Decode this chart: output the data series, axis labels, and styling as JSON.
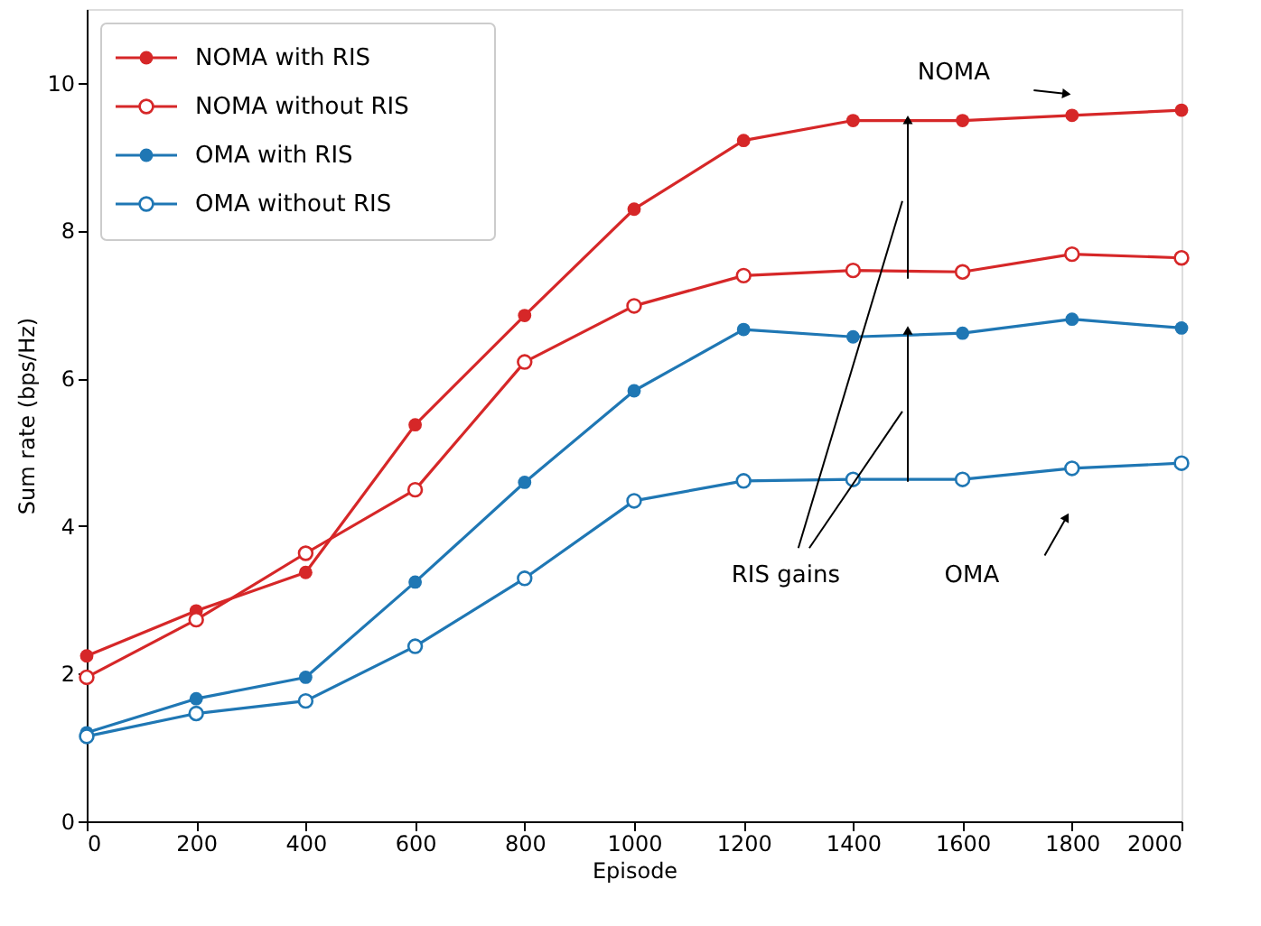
{
  "chart_data": {
    "type": "line",
    "xlabel": "Episode",
    "ylabel": "Sum rate (bps/Hz)",
    "x": [
      0,
      200,
      400,
      600,
      800,
      1000,
      1200,
      1400,
      1600,
      1800,
      2000
    ],
    "series": [
      {
        "name": "NOMA with RIS",
        "color": "#d62728",
        "values": [
          2.24,
          2.85,
          3.37,
          5.37,
          6.85,
          8.29,
          9.22,
          9.49,
          9.49,
          9.56,
          9.63
        ]
      },
      {
        "name": "NOMA without RIS",
        "color": "#d62728",
        "values": [
          1.95,
          2.73,
          3.63,
          4.49,
          6.22,
          6.98,
          7.39,
          7.46,
          7.44,
          7.68,
          7.63
        ]
      },
      {
        "name": "OMA with RIS",
        "color": "#1f77b4",
        "values": [
          1.2,
          1.66,
          1.95,
          3.24,
          4.59,
          5.83,
          6.66,
          6.56,
          6.61,
          6.8,
          6.68
        ]
      },
      {
        "name": "OMA without RIS",
        "color": "#1f77b4",
        "values": [
          1.15,
          1.46,
          1.63,
          2.37,
          3.29,
          4.34,
          4.61,
          4.63,
          4.63,
          4.78,
          4.85
        ]
      }
    ],
    "xlim": [
      0,
      2000
    ],
    "xticks": [
      0,
      200,
      400,
      600,
      800,
      1000,
      1200,
      1400,
      1600,
      1800,
      2000
    ],
    "ylim": [
      0,
      11
    ],
    "yticks": [
      0,
      2,
      4,
      6,
      8,
      10
    ],
    "grid": false,
    "legend": "top left",
    "marker": "circle",
    "line_style": "solid",
    "annotations": [
      "NOMA",
      "RIS gains",
      "OMA"
    ]
  }
}
